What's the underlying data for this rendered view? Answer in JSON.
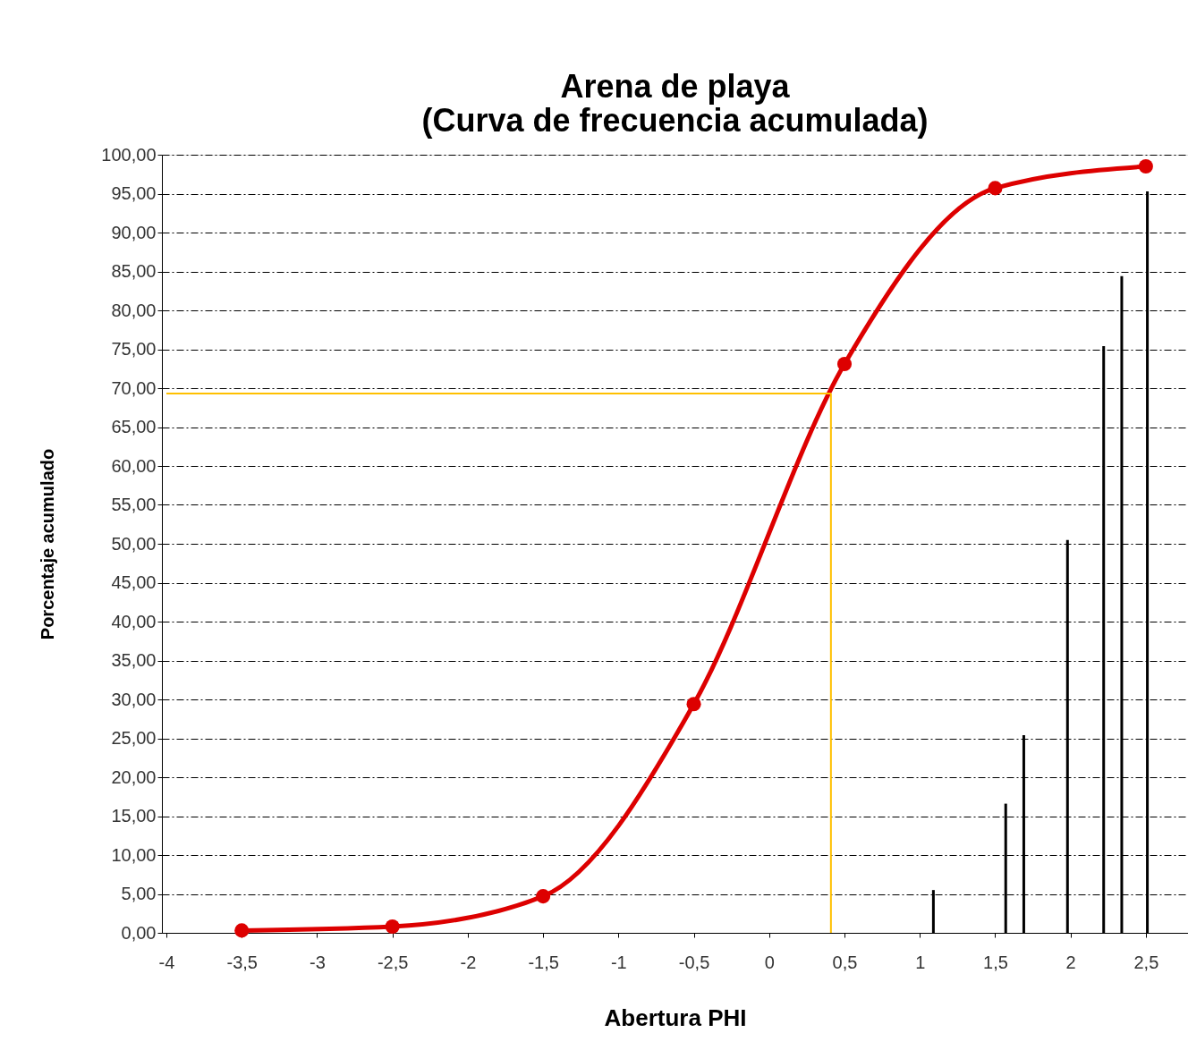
{
  "chart_data": {
    "type": "line",
    "title": "Arena de playa\n(Curva de frecuencia acumulada)",
    "xlabel": "Abertura PHI",
    "ylabel": "Porcentaje acumulado",
    "series": [
      {
        "color": "#dd0000",
        "marker": "circle",
        "x": [
          -3.5,
          -2.5,
          -1.5,
          -0.5,
          0.5,
          1.5,
          2.5
        ],
        "values": [
          0.3,
          0.8,
          4.7,
          29.4,
          73.1,
          95.7,
          98.5
        ]
      },
      {
        "type": "bar",
        "color": "#000000",
        "x": [
          1.09,
          1.57,
          1.69,
          1.98,
          2.22,
          2.34,
          2.51
        ],
        "values": [
          5.5,
          16.6,
          25.4,
          50.5,
          75.4,
          84.4,
          95.3
        ]
      }
    ],
    "xlim": [
      -4,
      2.75
    ],
    "xticks": [
      -4,
      {
        "value": -3.5,
        "label": "-3,5"
      },
      -3,
      {
        "value": -2.5,
        "label": "-2,5"
      },
      -2,
      {
        "value": -1.5,
        "label": "-1,5"
      },
      -1,
      {
        "value": -0.5,
        "label": "-0,5"
      },
      0,
      {
        "value": 0.5,
        "label": "0,5"
      },
      1,
      {
        "value": 1.5,
        "label": "1,5"
      },
      2,
      {
        "value": 2.5,
        "label": "2,5"
      }
    ],
    "ylim": [
      0,
      100
    ],
    "yticks": [
      {
        "value": 0,
        "label": "0,00"
      },
      {
        "value": 5,
        "label": "5,00"
      },
      {
        "value": 10,
        "label": "10,00"
      },
      {
        "value": 15,
        "label": "15,00"
      },
      {
        "value": 20,
        "label": "20,00"
      },
      {
        "value": 25,
        "label": "25,00"
      },
      {
        "value": 30,
        "label": "30,00"
      },
      {
        "value": 35,
        "label": "35,00"
      },
      {
        "value": 40,
        "label": "40,00"
      },
      {
        "value": 45,
        "label": "45,00"
      },
      {
        "value": 50,
        "label": "50,00"
      },
      {
        "value": 55,
        "label": "55,00"
      },
      {
        "value": 60,
        "label": "60,00"
      },
      {
        "value": 65,
        "label": "65,00"
      },
      {
        "value": 70,
        "label": "70,00"
      },
      {
        "value": 75,
        "label": "75,00"
      },
      {
        "value": 80,
        "label": "80,00"
      },
      {
        "value": 85,
        "label": "85,00"
      },
      {
        "value": 90,
        "label": "90,00"
      },
      {
        "value": 95,
        "label": "95,00"
      },
      {
        "value": 100,
        "label": "100,00"
      }
    ],
    "ref_lines": [
      {
        "axis": "y",
        "value": 69.3,
        "color": "#ffc000"
      },
      {
        "axis": "x",
        "value": 0.41,
        "color": "#ffc000"
      }
    ],
    "grid": "y",
    "line_style": "solid"
  }
}
